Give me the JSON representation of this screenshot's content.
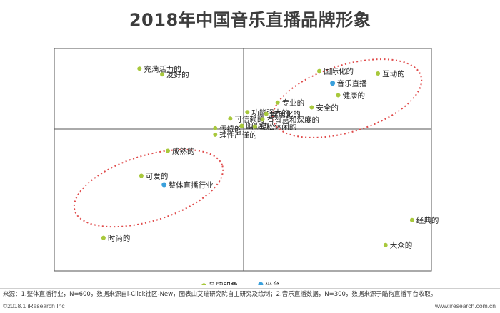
{
  "chart_data": {
    "type": "scatter",
    "title": "2018年中国音乐直播品牌形象",
    "xlabel": "",
    "ylabel": "",
    "xlim": [
      -1,
      1
    ],
    "ylim": [
      -1,
      1
    ],
    "grid": false,
    "attributes": [
      {
        "label": "充满活力的",
        "x": -0.55,
        "y": 0.75
      },
      {
        "label": "友好的",
        "x": -0.43,
        "y": 0.68
      },
      {
        "label": "国际化的",
        "x": 0.4,
        "y": 0.72
      },
      {
        "label": "互动的",
        "x": 0.71,
        "y": 0.69
      },
      {
        "label": "健康的",
        "x": 0.5,
        "y": 0.42
      },
      {
        "label": "专业的",
        "x": 0.18,
        "y": 0.33
      },
      {
        "label": "功能强大的",
        "x": 0.02,
        "y": 0.21
      },
      {
        "label": "可信赖的",
        "x": -0.07,
        "y": 0.13
      },
      {
        "label": "娱乐化的",
        "x": 0.12,
        "y": 0.19
      },
      {
        "label": "安全的",
        "x": 0.36,
        "y": 0.27
      },
      {
        "label": "有智慧和深度的",
        "x": 0.1,
        "y": 0.12
      },
      {
        "label": "传统的",
        "x": -0.15,
        "y": 0.01
      },
      {
        "label": "幽默的",
        "x": -0.01,
        "y": 0.04
      },
      {
        "label": "轻松休闲的",
        "x": 0.06,
        "y": 0.03
      },
      {
        "label": "理性严谨的",
        "x": -0.15,
        "y": -0.07
      },
      {
        "label": "成熟的",
        "x": -0.4,
        "y": -0.27
      },
      {
        "label": "可爱的",
        "x": -0.54,
        "y": -0.58
      },
      {
        "label": "时尚的",
        "x": -0.74,
        "y": -1.35
      },
      {
        "label": "经典的",
        "x": 0.89,
        "y": -1.13
      },
      {
        "label": "大众的",
        "x": 0.75,
        "y": -1.44
      },
      {
        "label": "品牌印象",
        "x": -0.21,
        "y": -1.94
      }
    ],
    "brands": [
      {
        "label": "音乐直播",
        "x": 0.47,
        "y": 0.57
      },
      {
        "label": "整体直播行业",
        "x": -0.42,
        "y": -0.69
      },
      {
        "label": "平台",
        "x": 0.09,
        "y": -1.93
      }
    ],
    "colors": {
      "attribute": "#a8c83c",
      "brand": "#3aa0dc",
      "ellipse": "#e04a4a",
      "frame": "#555555"
    }
  },
  "footer": {
    "source": "来源：1.整体直播行业，N=600，数据来源自i-Click社区-New，图表由艾瑞研究院自主研究及绘制；2.音乐直播数据，N=300，数据来源于酷狗直播平台收取。",
    "copyright": "©2018.1 iResearch Inc",
    "website": "www.iresearch.com.cn"
  }
}
